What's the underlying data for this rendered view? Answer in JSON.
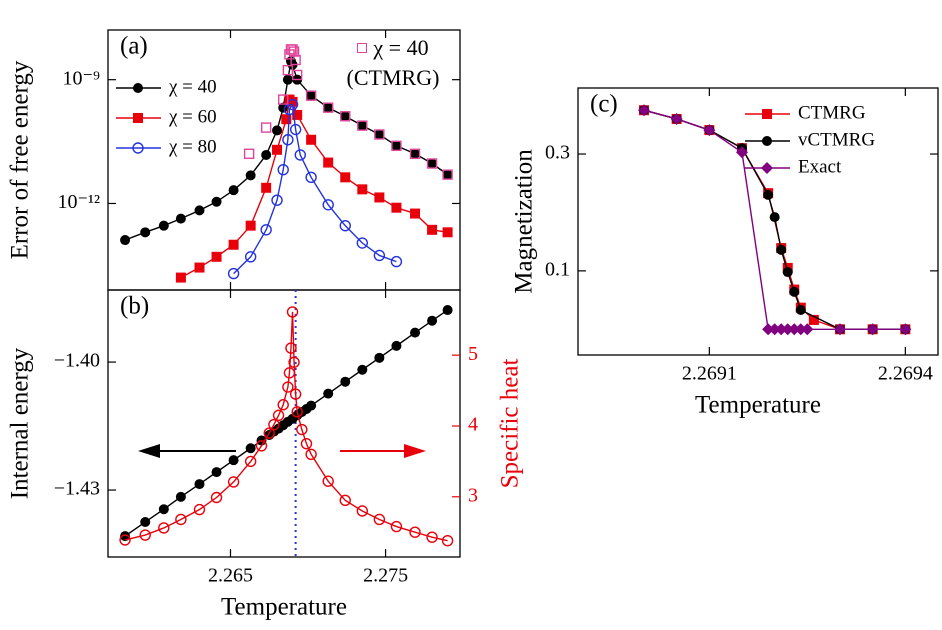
{
  "chart_data": [
    {
      "type": "line",
      "panel_label": "(a)",
      "y_label": "Error of free energy",
      "ylog": true,
      "legend": "upper left",
      "xlim": [
        2.2571,
        2.2798
      ],
      "ylim": [
        8e-15,
        1.6e-08
      ],
      "yticks": [
        {
          "value": 1e-09,
          "label": "10⁻⁹"
        },
        {
          "value": 1e-12,
          "label": "10⁻¹²"
        }
      ],
      "series": [
        {
          "name": "χ = 40",
          "color": "#000000",
          "marker": "circle",
          "x": [
            2.2582,
            2.2595,
            2.2607,
            2.2618,
            2.263,
            2.2641,
            2.2652,
            2.2663,
            2.2673,
            2.268,
            2.2684,
            2.2687,
            2.2689,
            2.269,
            2.2693,
            2.2702,
            2.2713,
            2.2724,
            2.2735,
            2.2746,
            2.2757,
            2.2769,
            2.278,
            2.279
          ],
          "values": [
            1.3e-13,
            2e-13,
            2.9e-13,
            4.3e-13,
            6.8e-13,
            1.1e-12,
            2.1e-12,
            4.8e-12,
            1.5e-11,
            5.9e-11,
            2.1e-10,
            1e-09,
            2.8e-09,
            2.3e-09,
            1e-09,
            4.1e-10,
            2.1e-10,
            1.3e-10,
            7.7e-11,
            4.7e-11,
            2.5e-11,
            1.6e-11,
            9.3e-12,
            5e-12
          ]
        },
        {
          "name": "χ = 60",
          "color": "#e8000b",
          "marker": "square",
          "x": [
            2.2618,
            2.263,
            2.2641,
            2.2652,
            2.2663,
            2.2673,
            2.268,
            2.2686,
            2.2688,
            2.269,
            2.2693,
            2.2702,
            2.2713,
            2.2724,
            2.2735,
            2.2746,
            2.2757,
            2.2769,
            2.278,
            2.279
          ],
          "values": [
            1.6e-14,
            2.8e-14,
            5.1e-14,
            1e-13,
            2.9e-13,
            2.4e-12,
            2e-11,
            1.1e-10,
            3.3e-10,
            2.9e-10,
            1.4e-10,
            3.5e-11,
            9.8e-12,
            4.3e-12,
            2.2e-12,
            1.4e-12,
            7.9e-13,
            5.7e-13,
            2.3e-13,
            2e-13
          ]
        },
        {
          "name": "χ = 80",
          "color": "#2233dd",
          "marker": "open-circle",
          "x": [
            2.2652,
            2.2663,
            2.2673,
            2.268,
            2.2684,
            2.2687,
            2.2688,
            2.269,
            2.2692,
            2.2695,
            2.2702,
            2.2713,
            2.2724,
            2.2735,
            2.2746,
            2.2757
          ],
          "values": [
            2e-14,
            5.1e-14,
            2.3e-13,
            1.2e-12,
            6.6e-12,
            3.5e-11,
            1.9e-10,
            2.5e-10,
            6.2e-11,
            1.5e-11,
            4.3e-12,
            9.3e-13,
            2.9e-13,
            1.1e-13,
            5.5e-14,
            3.9e-14
          ]
        },
        {
          "name": "χ = 40 (CTMRG)",
          "color": "#e0449b",
          "marker": "open-square",
          "line": false,
          "x": [
            2.2662,
            2.2673,
            2.2684,
            2.2687,
            2.2688,
            2.2689,
            2.269,
            2.2691,
            2.2692,
            2.2693,
            2.2702,
            2.2713,
            2.2724,
            2.2735,
            2.2746,
            2.2757,
            2.2769,
            2.278,
            2.279
          ],
          "values": [
            1.6e-11,
            6.9e-11,
            3.3e-10,
            1.7e-09,
            4.1e-09,
            5.4e-09,
            5.4e-09,
            4.8e-09,
            3e-09,
            1.3e-09,
            4.1e-10,
            2.1e-10,
            1.3e-10,
            7.7e-11,
            4.7e-11,
            2.5e-11,
            1.6e-11,
            9.3e-12,
            5e-12
          ]
        }
      ]
    },
    {
      "type": "line",
      "panel_label": "(b)",
      "x_label": "Temperature",
      "y_label": "Internal energy",
      "y2_label": "Specific heat",
      "y2_color": "#e8000b",
      "xlim": [
        2.2571,
        2.2798
      ],
      "xticks": [
        2.265,
        2.275
      ],
      "ylim": [
        -1.4457,
        -1.3831
      ],
      "yticks": [
        {
          "value": -1.4,
          "label": "−1.40"
        },
        {
          "value": -1.43,
          "label": "−1.43"
        }
      ],
      "y2lim": [
        2.15,
        5.92
      ],
      "y2ticks": [
        3,
        4,
        5
      ],
      "vline": 2.2692,
      "vline_color": "#3333cc",
      "series": [
        {
          "color": "#000000",
          "marker": "circle",
          "x": [
            2.2582,
            2.2595,
            2.2607,
            2.2618,
            2.263,
            2.2641,
            2.2652,
            2.2663,
            2.267,
            2.2675,
            2.2678,
            2.2681,
            2.2684,
            2.2687,
            2.269,
            2.2693,
            2.2696,
            2.2699,
            2.2702,
            2.2713,
            2.2724,
            2.2735,
            2.2746,
            2.2757,
            2.2769,
            2.278,
            2.279
          ],
          "values": [
            -1.4408,
            -1.4375,
            -1.4345,
            -1.4316,
            -1.4286,
            -1.4258,
            -1.423,
            -1.4202,
            -1.4184,
            -1.4171,
            -1.4163,
            -1.4156,
            -1.4148,
            -1.414,
            -1.4133,
            -1.4125,
            -1.4117,
            -1.411,
            -1.4102,
            -1.4074,
            -1.4046,
            -1.4018,
            -1.399,
            -1.3962,
            -1.3931,
            -1.3903,
            -1.3878
          ]
        },
        {
          "color": "#e8000b",
          "marker": "open-circle",
          "axis": "y2",
          "x": [
            2.2582,
            2.2595,
            2.2607,
            2.2618,
            2.263,
            2.2641,
            2.2652,
            2.2663,
            2.267,
            2.2675,
            2.2678,
            2.2681,
            2.2684,
            2.2687,
            2.2688,
            2.2689,
            2.269,
            2.2691,
            2.2692,
            2.2693,
            2.2696,
            2.2699,
            2.2702,
            2.2713,
            2.2724,
            2.2735,
            2.2746,
            2.2757,
            2.2769,
            2.278,
            2.279
          ],
          "values": [
            2.39,
            2.46,
            2.56,
            2.68,
            2.82,
            2.99,
            3.21,
            3.5,
            3.72,
            3.9,
            4.02,
            4.15,
            4.3,
            4.55,
            4.75,
            5.1,
            5.61,
            4.9,
            4.45,
            4.2,
            3.95,
            3.75,
            3.6,
            3.22,
            2.95,
            2.8,
            2.68,
            2.58,
            2.5,
            2.43,
            2.38
          ]
        }
      ]
    },
    {
      "type": "line",
      "panel_label": "(c)",
      "x_label": "Temperature",
      "y_label": "Magnetization",
      "legend": "upper right",
      "xlim": [
        2.268899,
        2.26945
      ],
      "xticks": [
        2.2691,
        2.2694
      ],
      "ylim": [
        -0.044,
        0.413
      ],
      "yticks": [
        0.1,
        0.3
      ],
      "series": [
        {
          "name": "CTMRG",
          "color": "#e8000b",
          "marker": "square",
          "x": [
            2.269,
            2.26905,
            2.2691,
            2.26915,
            2.26919,
            2.26921,
            2.26922,
            2.26923,
            2.26924,
            2.26926,
            2.2693,
            2.26935,
            2.2694
          ],
          "values": [
            0.375,
            0.36,
            0.341,
            0.31,
            0.233,
            0.139,
            0.105,
            0.068,
            0.037,
            0.016,
            0,
            0,
            0
          ]
        },
        {
          "name": "vCTMRG",
          "color": "#000000",
          "marker": "circle",
          "x": [
            2.269,
            2.26905,
            2.2691,
            2.26915,
            2.26919,
            2.2692,
            2.26921,
            2.26922,
            2.26923,
            2.26924,
            2.2693,
            2.26935,
            2.2694
          ],
          "values": [
            0.375,
            0.36,
            0.341,
            0.31,
            0.23,
            0.192,
            0.136,
            0.098,
            0.064,
            0.033,
            0,
            0,
            0
          ]
        },
        {
          "name": "Exact",
          "color": "#800080",
          "marker": "diamond",
          "x": [
            2.269,
            2.26905,
            2.2691,
            2.26915,
            2.26919,
            2.2692,
            2.26921,
            2.26922,
            2.26923,
            2.26924,
            2.26925,
            2.2693,
            2.26935,
            2.2694
          ],
          "values": [
            0.375,
            0.36,
            0.341,
            0.303,
            0,
            0,
            0,
            0,
            0,
            0,
            0,
            0,
            0,
            0
          ]
        }
      ]
    }
  ]
}
